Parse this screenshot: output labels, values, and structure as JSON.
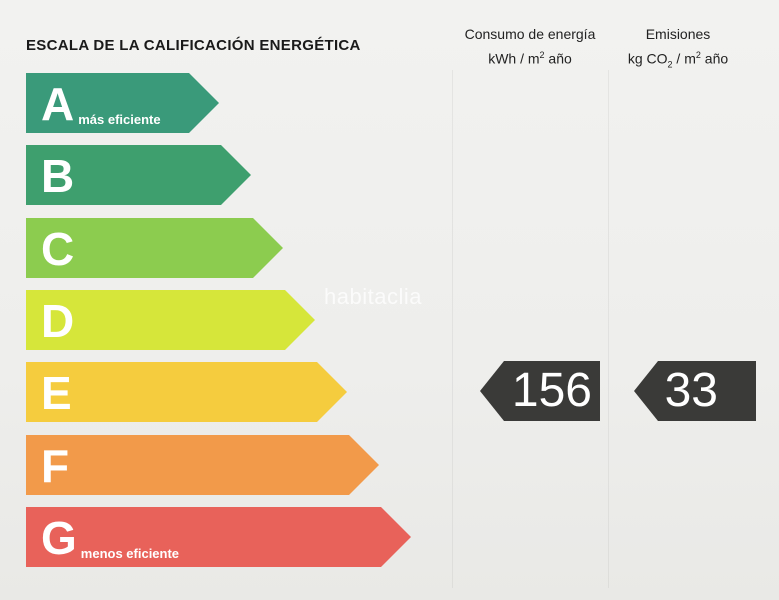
{
  "header": {
    "title": "ESCALA DE LA CALIFICACIÓN ENERGÉTICA",
    "energy_col_line1": "Consumo de energía",
    "energy_col_line2_pre": "kWh  / m",
    "energy_col_line2_sup": "2",
    "energy_col_line2_post": " año",
    "emissions_col_line1": "Emisiones",
    "emissions_col_line2_pre": "kg CO",
    "emissions_col_line2_sub": "2",
    "emissions_col_line2_mid": "  / m",
    "emissions_col_line2_sup": "2",
    "emissions_col_line2_post": " año"
  },
  "scale": [
    {
      "letter": "A",
      "sub": "más eficiente",
      "color": "#3a9a7a"
    },
    {
      "letter": "B",
      "sub": "",
      "color": "#3e9f6e"
    },
    {
      "letter": "C",
      "sub": "",
      "color": "#8ccc4f"
    },
    {
      "letter": "D",
      "sub": "",
      "color": "#d6e63a"
    },
    {
      "letter": "E",
      "sub": "",
      "color": "#f5cc3e"
    },
    {
      "letter": "F",
      "sub": "",
      "color": "#f29a4a"
    },
    {
      "letter": "G",
      "sub": "menos eficiente",
      "color": "#e8625a"
    }
  ],
  "rating": {
    "energy_value": "156",
    "emissions_value": "33",
    "rating_letter": "E"
  },
  "watermark": "habitaclia"
}
